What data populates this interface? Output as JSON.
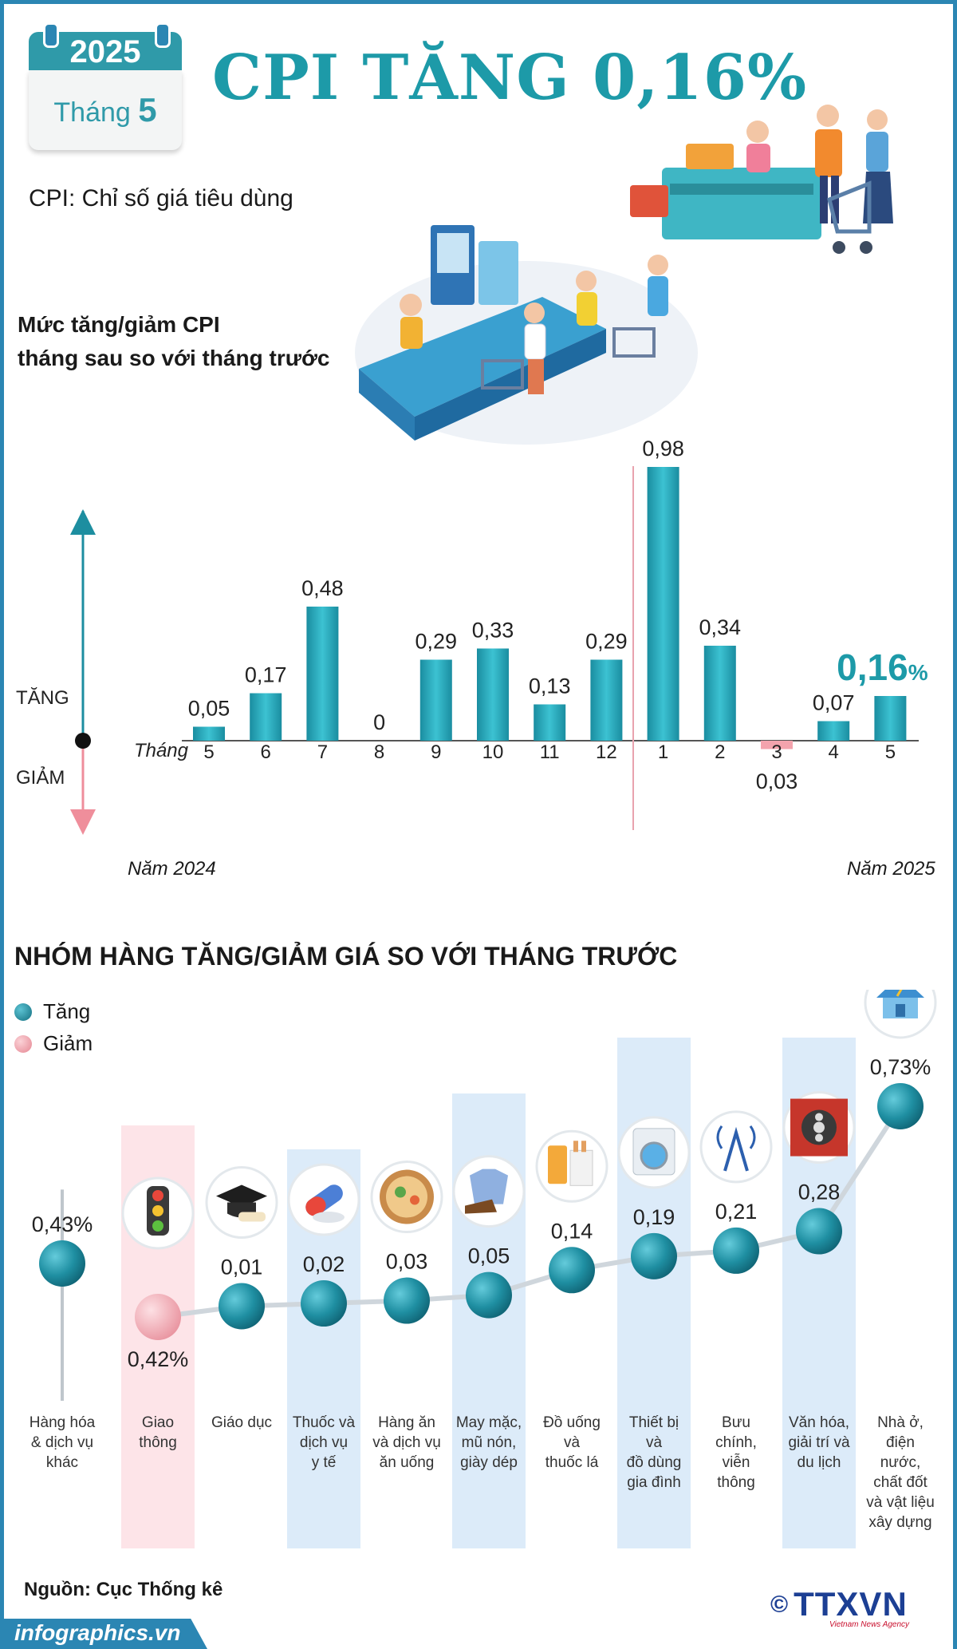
{
  "header": {
    "year": "2025",
    "month_label": "Tháng",
    "month_value": "5",
    "title": "CPI TĂNG 0,16%",
    "subtitle": "CPI: Chỉ số giá tiêu dùng"
  },
  "chart_data": [
    {
      "type": "bar",
      "title": "Mức tăng/giảm CPI tháng sau so với tháng trước",
      "title_lines": [
        "Mức tăng/giảm CPI",
        "tháng sau so với tháng trước"
      ],
      "x_axis_label": "Tháng",
      "categories": [
        "5",
        "6",
        "7",
        "8",
        "9",
        "10",
        "11",
        "12",
        "1",
        "2",
        "3",
        "4",
        "5"
      ],
      "values": [
        0.05,
        0.17,
        0.48,
        0,
        0.29,
        0.33,
        0.13,
        0.29,
        0.98,
        0.34,
        -0.03,
        0.07,
        0.16
      ],
      "value_labels": [
        "0,05",
        "0,17",
        "0,48",
        "0",
        "0,29",
        "0,33",
        "0,13",
        "0,29",
        "0,98",
        "0,34",
        "0,03",
        "0,07",
        "0,16"
      ],
      "highlight_label": "0,16",
      "highlight_unit": "%",
      "year_groups": [
        {
          "label": "Năm 2024",
          "months": [
            "5",
            "6",
            "7",
            "8",
            "9",
            "10",
            "11",
            "12"
          ]
        },
        {
          "label": "Năm 2025",
          "months": [
            "1",
            "2",
            "3",
            "4",
            "5"
          ]
        }
      ],
      "direction_labels": {
        "up": "TĂNG",
        "down": "GIẢM"
      },
      "colors": {
        "increase": "#1d9aa8",
        "decrease": "#f3a3ad",
        "highlight": "#1d9aa8"
      }
    },
    {
      "type": "scatter",
      "title": "NHÓM HÀNG TĂNG/GIẢM GIÁ SO VỚI THÁNG TRƯỚC",
      "legend": [
        {
          "label": "Tăng",
          "color": "#1d8ea0"
        },
        {
          "label": "Giảm",
          "color": "#f4a7b0"
        }
      ],
      "categories": [
        {
          "name_lines": [
            "Hàng hóa",
            "& dịch vụ",
            "khác"
          ],
          "value": 0.43,
          "label": "0,43%",
          "direction": "up",
          "icon": "none-icon"
        },
        {
          "name_lines": [
            "Giao",
            "thông"
          ],
          "value": -0.42,
          "label": "0,42%",
          "direction": "down",
          "icon": "traffic-light-icon"
        },
        {
          "name_lines": [
            "Giáo dục"
          ],
          "value": 0.01,
          "label": "0,01",
          "direction": "up",
          "icon": "graduation-cap-icon"
        },
        {
          "name_lines": [
            "Thuốc và",
            "dịch vụ",
            "y tế"
          ],
          "value": 0.02,
          "label": "0,02",
          "direction": "up",
          "icon": "pill-icon"
        },
        {
          "name_lines": [
            "Hàng ăn",
            "và dịch vụ",
            "ăn uống"
          ],
          "value": 0.03,
          "label": "0,03",
          "direction": "up",
          "icon": "food-bowl-icon"
        },
        {
          "name_lines": [
            "May mặc,",
            "mũ nón,",
            "giày dép"
          ],
          "value": 0.05,
          "label": "0,05",
          "direction": "up",
          "icon": "shirt-shoes-icon"
        },
        {
          "name_lines": [
            "Đồ uống",
            "và",
            "thuốc lá"
          ],
          "value": 0.14,
          "label": "0,14",
          "direction": "up",
          "icon": "drink-cigarette-icon"
        },
        {
          "name_lines": [
            "Thiết bị",
            "và",
            "đồ dùng",
            "gia đình"
          ],
          "value": 0.19,
          "label": "0,19",
          "direction": "up",
          "icon": "washing-machine-icon"
        },
        {
          "name_lines": [
            "Bưu",
            "chính,",
            "viễn",
            "thông"
          ],
          "value": 0.21,
          "label": "0,21",
          "direction": "up",
          "icon": "antenna-icon"
        },
        {
          "name_lines": [
            "Văn hóa,",
            "giải trí và",
            "du lịch"
          ],
          "value": 0.28,
          "label": "0,28",
          "direction": "up",
          "icon": "film-reel-icon"
        },
        {
          "name_lines": [
            "Nhà ở,",
            "điện",
            "nước,",
            "chất đốt",
            "và vật liệu",
            "xây dựng"
          ],
          "value": 0.73,
          "label": "0,73%",
          "direction": "up",
          "icon": "house-plug-icon"
        }
      ]
    }
  ],
  "footer": {
    "source": "Nguồn: Cục Thống kê",
    "site": "infographics.vn",
    "logo": "TTXVN",
    "logo_symbol": "©",
    "logo_sub": "Vietnam News Agency"
  }
}
